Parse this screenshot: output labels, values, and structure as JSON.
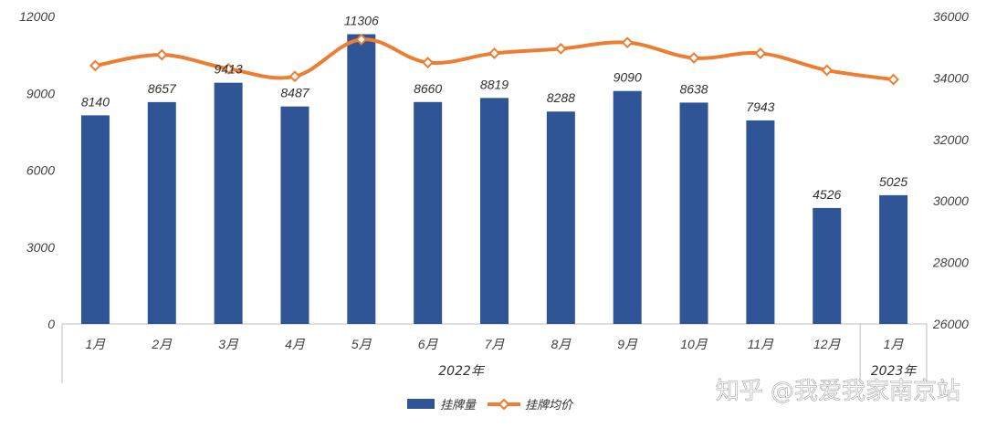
{
  "chart_data": {
    "type": "bar",
    "categories": [
      "1月",
      "2月",
      "3月",
      "4月",
      "5月",
      "6月",
      "7月",
      "8月",
      "9月",
      "10月",
      "11月",
      "12月",
      "1月"
    ],
    "category_groups": [
      {
        "label": "2022年",
        "count": 12
      },
      {
        "label": "2023年",
        "count": 1
      }
    ],
    "series": [
      {
        "name": "挂牌量",
        "type": "bar",
        "axis": "left",
        "color": "#2F5597",
        "values": [
          8140,
          8657,
          9413,
          8487,
          11306,
          8660,
          8819,
          8288,
          9090,
          8638,
          7943,
          4526,
          5025
        ],
        "data_labels": [
          "8140",
          "8657",
          "9413",
          "8487",
          "11306",
          "8660",
          "8819",
          "8288",
          "9090",
          "8638",
          "7943",
          "4526",
          "5025"
        ]
      },
      {
        "name": "挂牌均价",
        "type": "line",
        "axis": "right",
        "color": "#ED7D31",
        "values": [
          34400,
          34750,
          34300,
          34050,
          35250,
          34500,
          34800,
          34950,
          35150,
          34650,
          34800,
          34250,
          33950
        ]
      }
    ],
    "y_left": {
      "min": 0,
      "max": 12000,
      "ticks": [
        0,
        3000,
        6000,
        9000,
        12000
      ]
    },
    "y_right": {
      "min": 26000,
      "max": 36000,
      "ticks": [
        26000,
        28000,
        30000,
        32000,
        34000,
        36000
      ]
    },
    "title": "",
    "xlabel": "",
    "ylabel": "",
    "grid": false,
    "legend": "bottom-center"
  },
  "watermark": "知乎 @我爱我家南京站"
}
